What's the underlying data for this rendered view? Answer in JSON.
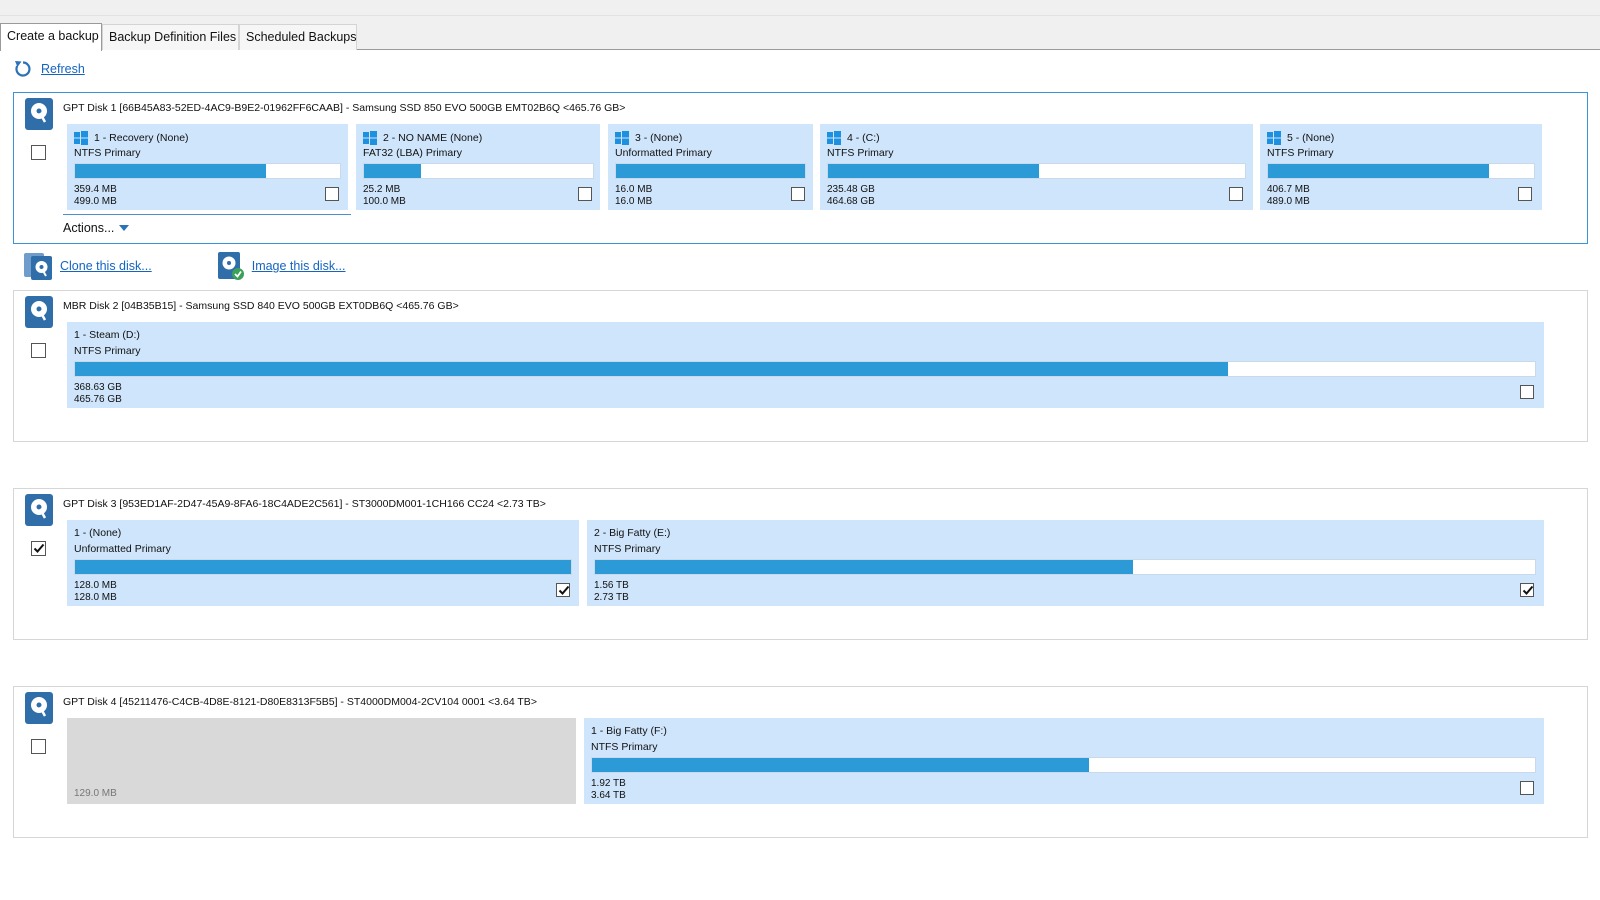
{
  "tabs": [
    {
      "label": "Create a backup",
      "active": true
    },
    {
      "label": "Backup Definition Files",
      "active": false
    },
    {
      "label": "Scheduled Backups",
      "active": false
    }
  ],
  "toolbar": {
    "refresh_label": "Refresh"
  },
  "colors": {
    "partition_bg": "#cfe5fb",
    "bar_fill": "#2b9ad6",
    "unallocated_bg": "#d9d9d9",
    "link": "#1565c0",
    "selected_border": "#3b93d9"
  },
  "disk_actions": {
    "actions_label": "Actions...",
    "clone_label": "Clone this disk...",
    "image_label": "Image this disk..."
  },
  "disks": [
    {
      "title": "GPT Disk 1 [66B45A83-52ED-4AC9-B9E2-01962FF6CAAB] - Samsung SSD 850 EVO 500GB EMT02B6Q  <465.76 GB>",
      "checked": false,
      "partitions": [
        {
          "name": "1 - Recovery (None)",
          "type": "NTFS Primary",
          "used": "359.4 MB",
          "total": "499.0 MB",
          "fill": 0.72,
          "checked": false,
          "win_icon": true
        },
        {
          "name": "2 - NO NAME (None)",
          "type": "FAT32 (LBA) Primary",
          "used": "25.2 MB",
          "total": "100.0 MB",
          "fill": 0.25,
          "checked": false,
          "win_icon": true
        },
        {
          "name": "3 -  (None)",
          "type": "Unformatted Primary",
          "used": "16.0 MB",
          "total": "16.0 MB",
          "fill": 1.0,
          "checked": false,
          "win_icon": true
        },
        {
          "name": "4 -  (C:)",
          "type": "NTFS Primary",
          "used": "235.48 GB",
          "total": "464.68 GB",
          "fill": 0.507,
          "checked": false,
          "win_icon": true
        },
        {
          "name": "5 -  (None)",
          "type": "NTFS Primary",
          "used": "406.7 MB",
          "total": "489.0 MB",
          "fill": 0.83,
          "checked": false,
          "win_icon": true
        }
      ]
    },
    {
      "title": "MBR Disk 2 [04B35B15] - Samsung SSD 840 EVO 500GB EXT0DB6Q  <465.76 GB>",
      "checked": false,
      "partitions": [
        {
          "name": "1 - Steam (D:)",
          "type": "NTFS Primary",
          "used": "368.63 GB",
          "total": "465.76 GB",
          "fill": 0.79,
          "checked": false,
          "win_icon": false
        }
      ]
    },
    {
      "title": "GPT Disk 3 [953ED1AF-2D47-45A9-8FA6-18C4ADE2C561] - ST3000DM001-1CH166 CC24  <2.73 TB>",
      "checked": true,
      "partitions": [
        {
          "name": "1 -  (None)",
          "type": "Unformatted Primary",
          "used": "128.0 MB",
          "total": "128.0 MB",
          "fill": 1.0,
          "checked": true,
          "win_icon": false
        },
        {
          "name": "2 - Big Fatty (E:)",
          "type": "NTFS Primary",
          "used": "1.56 TB",
          "total": "2.73 TB",
          "fill": 0.572,
          "checked": true,
          "win_icon": false
        }
      ]
    },
    {
      "title": "GPT Disk 4 [45211476-C4CB-4D8E-8121-D80E8313F5B5] - ST4000DM004-2CV104 0001  <3.64 TB>",
      "checked": false,
      "unallocated": {
        "size": "129.0 MB"
      },
      "partitions": [
        {
          "name": "1 - Big Fatty (F:)",
          "type": "NTFS Primary",
          "used": "1.92 TB",
          "total": "3.64 TB",
          "fill": 0.527,
          "checked": false,
          "win_icon": false
        }
      ]
    }
  ]
}
